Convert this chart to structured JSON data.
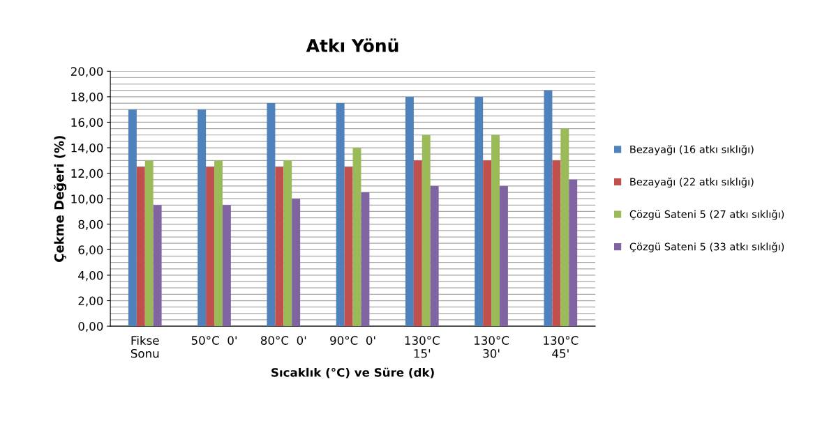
{
  "chart_data": {
    "type": "bar",
    "title": "Atkı Yönü",
    "xlabel": "Sıcaklık (°C) ve Süre (dk)",
    "ylabel": "Çekme Değeri (%)",
    "categories": [
      "Fikse\nSonu",
      "50°C  0'",
      "80°C  0'",
      "90°C  0'",
      "130°C\n15'",
      "130°C\n30'",
      "130°C\n45'"
    ],
    "series": [
      {
        "name": "Bezayağı (16 atkı sıklığı)",
        "color": "#4f81bd",
        "values": [
          17,
          17,
          17.5,
          17.5,
          18,
          18,
          18.5
        ]
      },
      {
        "name": "Bezayağı (22 atkı sıklığı)",
        "color": "#c0504d",
        "values": [
          12.5,
          12.5,
          12.5,
          12.5,
          13,
          13,
          13
        ]
      },
      {
        "name": "Çözgü Sateni 5 (27 atkı sıklığı)",
        "color": "#9bbb59",
        "values": [
          13,
          13,
          13,
          14,
          15,
          15,
          15.5
        ]
      },
      {
        "name": "Çözgü Sateni 5 (33 atkı sıklığı)",
        "color": "#8064a2",
        "values": [
          9.5,
          9.5,
          10,
          10.5,
          11,
          11,
          11.5
        ]
      }
    ],
    "ylim": [
      0,
      20
    ],
    "yticks": [
      {
        "value": 0,
        "label": "0,00"
      },
      {
        "value": 0.5,
        "label": null
      },
      {
        "value": 1,
        "label": null
      },
      {
        "value": 1.5,
        "label": null
      },
      {
        "value": 2,
        "label": "2,00"
      },
      {
        "value": 2.5,
        "label": null
      },
      {
        "value": 3,
        "label": null
      },
      {
        "value": 3.5,
        "label": null
      },
      {
        "value": 4,
        "label": "4,00"
      },
      {
        "value": 4.5,
        "label": null
      },
      {
        "value": 5,
        "label": null
      },
      {
        "value": 5.5,
        "label": null
      },
      {
        "value": 6,
        "label": "6,00"
      },
      {
        "value": 6.5,
        "label": null
      },
      {
        "value": 7,
        "label": null
      },
      {
        "value": 7.5,
        "label": null
      },
      {
        "value": 8,
        "label": "8,00"
      },
      {
        "value": 8.5,
        "label": null
      },
      {
        "value": 9,
        "label": null
      },
      {
        "value": 9.5,
        "label": null
      },
      {
        "value": 10,
        "label": "10,00"
      },
      {
        "value": 10.5,
        "label": null
      },
      {
        "value": 11,
        "label": null
      },
      {
        "value": 11.5,
        "label": null
      },
      {
        "value": 12,
        "label": "12,00"
      },
      {
        "value": 12.5,
        "label": null
      },
      {
        "value": 13,
        "label": null
      },
      {
        "value": 13.5,
        "label": null
      },
      {
        "value": 14,
        "label": "14,00"
      },
      {
        "value": 14.5,
        "label": null
      },
      {
        "value": 15,
        "label": null
      },
      {
        "value": 15.5,
        "label": null
      },
      {
        "value": 16,
        "label": "16,00"
      },
      {
        "value": 16.5,
        "label": null
      },
      {
        "value": 17,
        "label": null
      },
      {
        "value": 17.5,
        "label": null
      },
      {
        "value": 18,
        "label": "18,00"
      },
      {
        "value": 18.5,
        "label": null
      },
      {
        "value": 19,
        "label": null
      },
      {
        "value": 19.5,
        "label": null
      },
      {
        "value": 20,
        "label": "20,00"
      }
    ],
    "grid": "y",
    "legend": "right"
  }
}
